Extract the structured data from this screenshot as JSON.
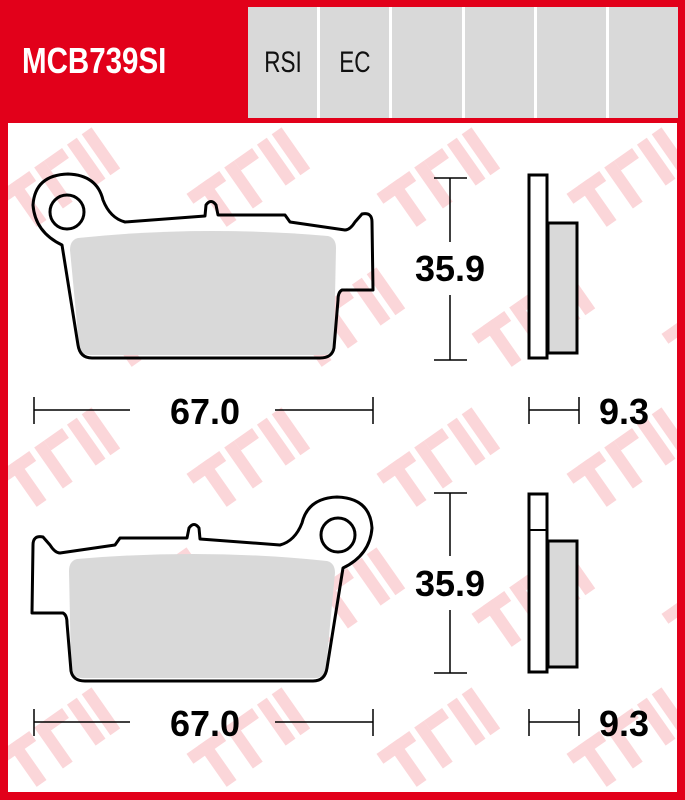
{
  "header": {
    "part_number": "MCB739SI",
    "cells": [
      "RSI",
      "EC",
      "",
      "",
      "",
      ""
    ]
  },
  "watermark": "TRW",
  "drawings": [
    {
      "name": "top-pad",
      "width_label": "67.0",
      "height_label": "35.9",
      "thickness_label": "9.3"
    },
    {
      "name": "bottom-pad",
      "width_label": "67.0",
      "height_label": "35.9",
      "thickness_label": "9.3"
    }
  ],
  "colors": {
    "brand_red": "#e2001a",
    "header_grey": "#d9d9d9",
    "friction_grey": "#d9d9d9"
  }
}
